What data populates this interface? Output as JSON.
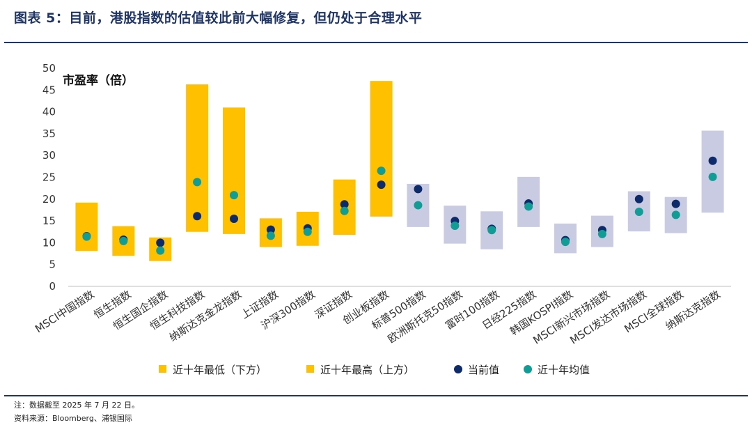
{
  "figure_title": "图表 5：目前，港股指数的估值较此前大幅修复，但仍处于合理水平",
  "notes": {
    "note": "注：数据截至 2025 年 7 月 22 日。",
    "source": "资料来源：Bloomberg、浦银国际"
  },
  "colors": {
    "title": "#1f3566",
    "hk_bar": "#ffc000",
    "other_bar": "#c9cbe2",
    "current_dot": "#0d2a6b",
    "average_dot": "#0f9d96"
  },
  "chart_data": {
    "type": "range-bar-with-markers",
    "ylabel": "市盈率（倍）",
    "ylim": [
      0,
      50
    ],
    "yticks": [
      0,
      5,
      10,
      15,
      20,
      25,
      30,
      35,
      40,
      45,
      50
    ],
    "categories": [
      "MSCI中国指数",
      "恒生指数",
      "恒生国企指数",
      "恒生科技指数",
      "纳斯达克金龙指数",
      "上证指数",
      "沪深300指数",
      "深证指数",
      "创业板指数",
      "标普500指数",
      "欧洲斯托克50指数",
      "富时100指数",
      "日经225指数",
      "韩国KOSPI指数",
      "MSCI新兴市场指数",
      "MSCI发达市场指数",
      "MSCI全球指数",
      "纳斯达克指数"
    ],
    "bar_group": [
      "hk",
      "hk",
      "hk",
      "hk",
      "hk",
      "hk",
      "hk",
      "hk",
      "hk",
      "other",
      "other",
      "other",
      "other",
      "other",
      "other",
      "other",
      "other",
      "other"
    ],
    "series": [
      {
        "name": "近十年最低（下方）",
        "values": [
          8.1,
          7.0,
          5.8,
          12.5,
          12.0,
          9.0,
          9.3,
          11.8,
          16.0,
          13.6,
          9.8,
          8.5,
          13.6,
          7.6,
          9.0,
          12.6,
          12.2,
          16.9
        ]
      },
      {
        "name": "近十年最高（上方）",
        "values": [
          19.2,
          13.8,
          11.2,
          46.3,
          41.0,
          15.6,
          17.1,
          24.5,
          47.1,
          23.5,
          18.5,
          17.2,
          25.1,
          14.4,
          16.2,
          21.8,
          20.5,
          35.7
        ]
      },
      {
        "name": "当前值",
        "values": [
          11.5,
          10.7,
          10.0,
          16.1,
          15.5,
          13.0,
          13.3,
          18.8,
          23.3,
          22.3,
          15.0,
          13.2,
          19.0,
          10.6,
          12.9,
          20.0,
          18.9,
          28.8
        ]
      },
      {
        "name": "近十年均值",
        "values": [
          11.4,
          10.4,
          8.2,
          23.9,
          20.9,
          11.6,
          12.5,
          17.3,
          26.5,
          18.6,
          13.9,
          12.9,
          18.3,
          10.2,
          12.0,
          17.1,
          16.4,
          25.1
        ]
      }
    ],
    "legend_position": "bottom",
    "grid": false
  }
}
